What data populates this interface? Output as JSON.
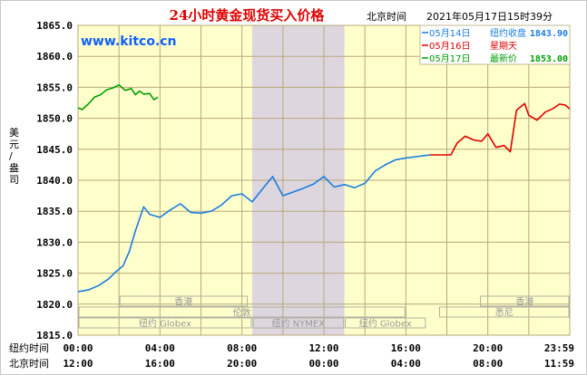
{
  "title": "24小时黄金现货买入价格",
  "site": "www.kitco.cn",
  "timezone_label": "北京时间",
  "datetime": "2021年05月17日15时39分",
  "colors": {
    "background": "#ffffcc",
    "grid": "#b8a878",
    "title": "#e00000",
    "site": "#1060ff",
    "series_green": "#00a000",
    "series_blue": "#1a7de0",
    "series_red": "#e00000",
    "closed_band": "#ddd6df",
    "session_text": "#9a9a9a"
  },
  "legend": [
    {
      "date": "05月14日",
      "label": "纽约收盘",
      "value": "1843.90",
      "color": "#1a7de0"
    },
    {
      "date": "05月16日",
      "label": "星期天",
      "value": "",
      "color": "#e00000"
    },
    {
      "date": "05月17日",
      "label": "最新价",
      "value": "1853.00",
      "color": "#00a000"
    }
  ],
  "y_axis_label": "美元/盎司",
  "sessions": [
    {
      "name": "香港",
      "start": 2.0,
      "end": 8.3,
      "row": 1
    },
    {
      "name": "伦敦",
      "start": 0.0,
      "end": 16.0,
      "row": 2
    },
    {
      "name": "纽约 Globex",
      "start": 0.0,
      "end": 8.5,
      "row": 3
    },
    {
      "name": "纽约 NYMEX",
      "start": 8.5,
      "end": 13.0,
      "row": 3
    },
    {
      "name": "纽约 Globex",
      "start": 13.0,
      "end": 17.0,
      "row": 3
    },
    {
      "name": "香港",
      "start": 19.6,
      "end": 24.0,
      "row": 1
    },
    {
      "name": "悉尼",
      "start": 17.6,
      "end": 24.0,
      "row": 2
    }
  ],
  "x_row_labels": {
    "ny": "纽约时间",
    "bj": "北京时间"
  },
  "ny_ticks": [
    "00:00",
    "04:00",
    "08:00",
    "12:00",
    "16:00",
    "20:00",
    "23:59"
  ],
  "bj_ticks": [
    "12:00",
    "16:00",
    "20:00",
    "00:00",
    "04:00",
    "08:00",
    "11:59"
  ],
  "chart_data": {
    "type": "line",
    "title": "24小时黄金现货买入价格",
    "ylabel": "美元/盎司",
    "xlabel": "纽约时间 / 北京时间",
    "xlim": [
      0,
      24
    ],
    "ylim": [
      1815,
      1865
    ],
    "yticks": [
      "1865.0",
      "1860.0",
      "1855.0",
      "1850.0",
      "1845.0",
      "1840.0",
      "1835.0",
      "1830.0",
      "1825.0",
      "1820.0",
      "1815.0"
    ],
    "closed_band": [
      8.5,
      13.0
    ],
    "series": [
      {
        "name": "05月17日",
        "color": "#00a000",
        "x": [
          0.0,
          0.2,
          0.5,
          0.8,
          1.1,
          1.4,
          1.7,
          2.0,
          2.3,
          2.6,
          2.8,
          3.0,
          3.2,
          3.5,
          3.7,
          3.9
        ],
        "y": [
          1851.7,
          1851.4,
          1852.3,
          1853.4,
          1853.8,
          1854.6,
          1854.9,
          1855.4,
          1854.5,
          1854.8,
          1853.8,
          1854.4,
          1853.9,
          1854.0,
          1853.0,
          1853.4
        ]
      },
      {
        "name": "05月14日",
        "color": "#1a7de0",
        "x": [
          0.0,
          0.5,
          1.0,
          1.5,
          1.8,
          2.2,
          2.5,
          2.8,
          3.2,
          3.5,
          4.0,
          4.5,
          5.0,
          5.5,
          6.0,
          6.5,
          7.0,
          7.5,
          8.0,
          8.5,
          9.0,
          9.5,
          10.0,
          10.5,
          11.0,
          11.5,
          12.0,
          12.5,
          13.0,
          13.5,
          14.0,
          14.5,
          15.0,
          15.5,
          16.0,
          16.5,
          17.0,
          17.2
        ],
        "y": [
          1822.0,
          1822.3,
          1823.0,
          1824.1,
          1825.1,
          1826.2,
          1828.5,
          1831.8,
          1835.7,
          1834.5,
          1834.0,
          1835.2,
          1836.2,
          1834.8,
          1834.7,
          1835.0,
          1836.0,
          1837.5,
          1837.8,
          1836.5,
          1838.6,
          1840.6,
          1837.5,
          1838.1,
          1838.7,
          1839.4,
          1840.6,
          1838.9,
          1839.3,
          1838.8,
          1839.5,
          1841.5,
          1842.5,
          1843.3,
          1843.6,
          1843.8,
          1844.0,
          1844.1
        ]
      },
      {
        "name": "05月16日",
        "color": "#e00000",
        "x": [
          17.2,
          18.2,
          18.5,
          18.9,
          19.3,
          19.7,
          20.0,
          20.4,
          20.8,
          21.1,
          21.4,
          21.8,
          22.0,
          22.4,
          22.8,
          23.2,
          23.5,
          23.8,
          24.0
        ],
        "y": [
          1844.1,
          1844.1,
          1846.0,
          1847.1,
          1846.5,
          1846.3,
          1847.5,
          1845.3,
          1845.6,
          1844.6,
          1851.3,
          1852.4,
          1850.5,
          1849.7,
          1851.0,
          1851.6,
          1852.3,
          1852.1,
          1851.5
        ]
      }
    ]
  }
}
